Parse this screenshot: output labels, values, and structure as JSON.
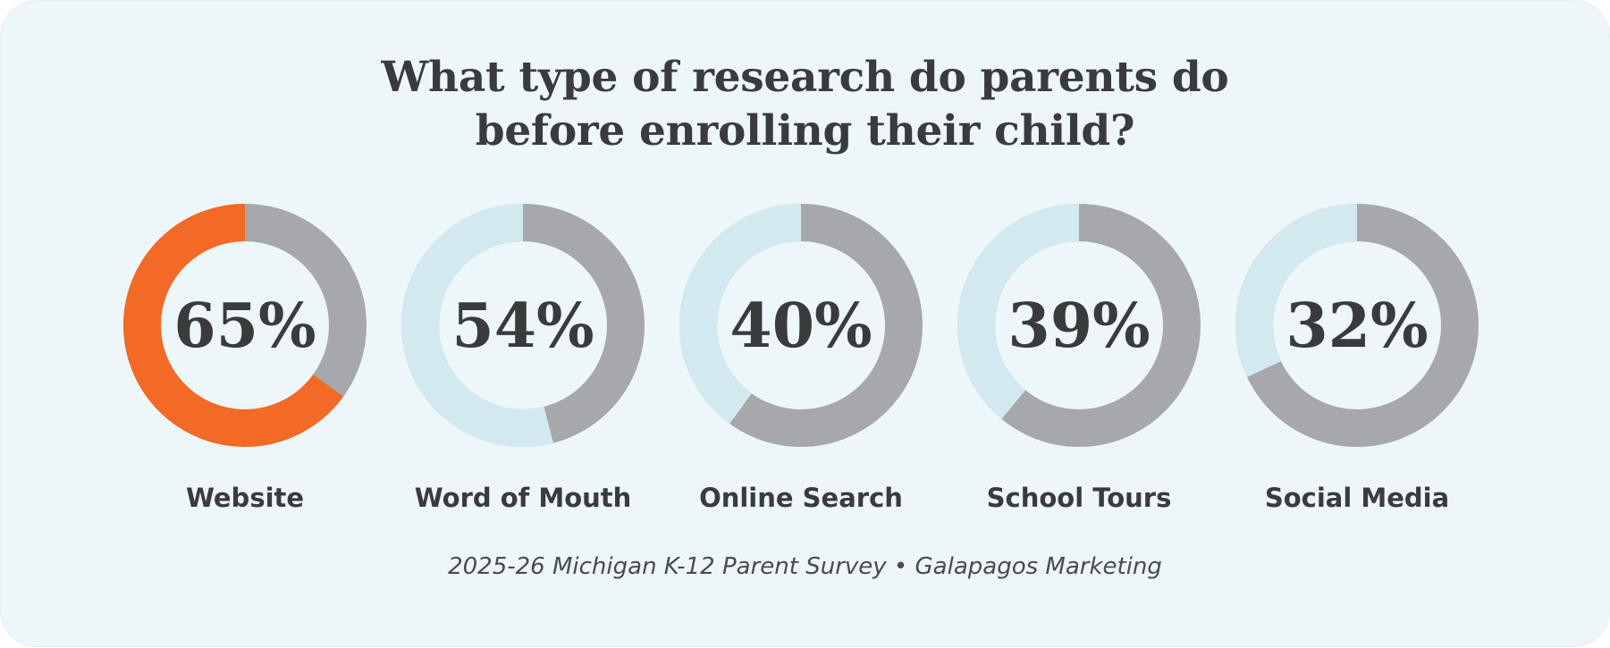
{
  "chart_data": {
    "type": "donut",
    "title_lines": [
      "What type of research do parents do",
      "before enrolling their child?"
    ],
    "unit": "%",
    "categories": [
      "Website",
      "Word of Mouth",
      "Online Search",
      "School Tours",
      "Social Media"
    ],
    "values": [
      65,
      54,
      40,
      39,
      32
    ],
    "value_labels": [
      "65%",
      "54%",
      "40%",
      "39%",
      "32%"
    ],
    "max": 100,
    "source": "2025-26 Michigan K-12 Parent Survey • Galapagos Marketing"
  },
  "colors": {
    "highlight": "#f26a25",
    "filled": "#d3e9f0",
    "remainder": "#a7a8ab",
    "text": "#3a3b3d",
    "background": "#edf6f9"
  }
}
